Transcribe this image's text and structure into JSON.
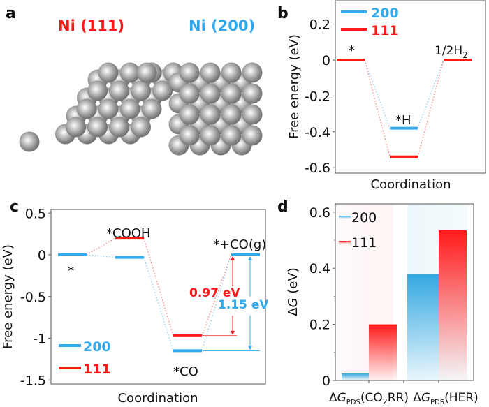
{
  "colors": {
    "red": "#ff1a1a",
    "blue": "#33aaee",
    "atom": "#9a9a9a",
    "axis": "#555555"
  },
  "panel_a": {
    "label": "a",
    "title_111": "Ni (111)",
    "title_200": "Ni (200)"
  },
  "chart_data": [
    {
      "panel": "b",
      "type": "line",
      "title": "",
      "xlabel": "Coordination",
      "ylabel": "Free energy (eV)",
      "ylim": [
        -0.62,
        0.32
      ],
      "yticks": [
        0.2,
        0,
        -0.2,
        -0.4,
        -0.6
      ],
      "ytick_labels": [
        "0.2",
        "0",
        "-0.2",
        "-0.4",
        "-0.6"
      ],
      "legend": {
        "placement": "top-left",
        "entries": [
          "200",
          "111"
        ]
      },
      "states": [
        "*",
        "*H",
        "1/2H2"
      ],
      "state_labels": [
        "*",
        "*H",
        "1/2H₂"
      ],
      "series": [
        {
          "name": "200",
          "values": [
            0,
            -0.38,
            0
          ]
        },
        {
          "name": "111",
          "values": [
            0,
            -0.54,
            0
          ]
        }
      ]
    },
    {
      "panel": "c",
      "type": "line",
      "title": "",
      "xlabel": "Coordination",
      "ylabel": "Free energy (eV)",
      "ylim": [
        -1.55,
        0.52
      ],
      "yticks": [
        0.5,
        0,
        -0.5,
        -1,
        -1.5
      ],
      "ytick_labels": [
        "0.5",
        "0",
        "-0.5",
        "-1",
        "-1.5"
      ],
      "legend": {
        "placement": "bottom-left",
        "entries": [
          "200",
          "111"
        ]
      },
      "states": [
        "*",
        "*COOH",
        "*CO",
        "*+CO(g)"
      ],
      "state_labels": [
        "*",
        "*COOH",
        "*CO",
        "*+CO(g)"
      ],
      "series": [
        {
          "name": "200",
          "values": [
            0,
            -0.03,
            -1.15,
            0
          ]
        },
        {
          "name": "111",
          "values": [
            0,
            0.2,
            -0.97,
            0
          ]
        }
      ],
      "annotations": [
        {
          "text": "0.97 eV",
          "series": "111"
        },
        {
          "text": "1.15 eV",
          "series": "200"
        }
      ]
    },
    {
      "panel": "d",
      "type": "bar",
      "title": "",
      "xlabel": "",
      "ylabel": "ΔG (eV)",
      "ylim": [
        0,
        0.62
      ],
      "yticks": [
        0,
        0.2,
        0.4,
        0.6
      ],
      "ytick_labels": [
        "0",
        "0.2",
        "0.4",
        "0.6"
      ],
      "legend": {
        "placement": "top-left",
        "entries": [
          "200",
          "111"
        ]
      },
      "categories": [
        "ΔG_PDS(CO2RR)",
        "ΔG_PDS(HER)"
      ],
      "series": [
        {
          "name": "200",
          "values": [
            0.025,
            0.38
          ]
        },
        {
          "name": "111",
          "values": [
            0.2,
            0.535
          ]
        }
      ]
    }
  ],
  "panel_labels": {
    "b": "b",
    "c": "c",
    "d": "d"
  }
}
